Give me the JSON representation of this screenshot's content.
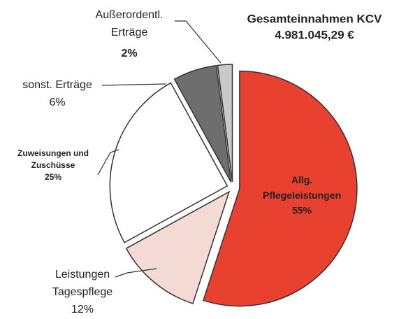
{
  "chart_data": {
    "type": "pie",
    "title": "Gesamteinnahmen KCV",
    "subtitle": "4.981.045,29 €",
    "categories": [
      "Allg.\nPflegeleistungen",
      "Leistungen\nTagespflege",
      "Zuweisungen und\nZuschüsse",
      "sonst. Erträge",
      "Außerordentl.\nErträge"
    ],
    "values": [
      55,
      12,
      25,
      6,
      2
    ],
    "value_labels": [
      "55%",
      "12%",
      "25%",
      "6%",
      "2%"
    ],
    "colors": [
      "#e8412f",
      "#f3dad5",
      "#ffffff",
      "#6e6e6e",
      "#c9c9c9"
    ]
  }
}
